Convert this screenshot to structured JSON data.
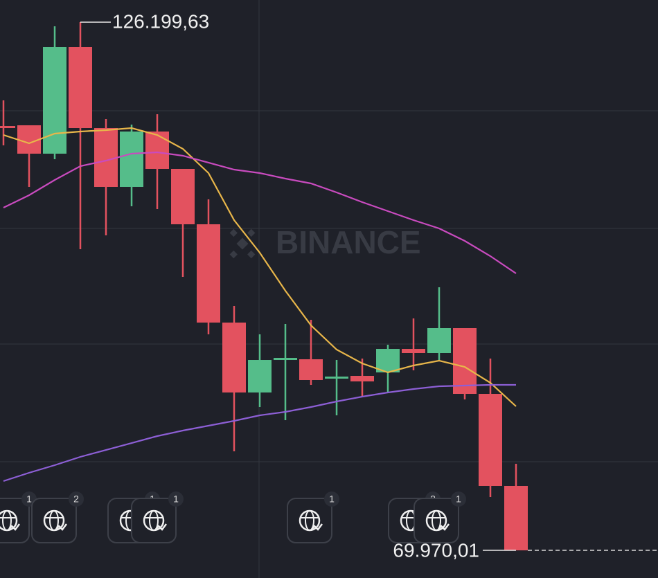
{
  "chart_data": {
    "type": "candlestick",
    "watermark": "BINANCE",
    "categories": [
      null,
      null,
      null,
      null,
      null,
      null,
      null,
      null,
      null,
      null,
      null,
      null,
      null,
      null,
      null,
      null,
      null,
      null,
      null,
      null,
      null
    ],
    "open": [
      115146,
      115220,
      112199,
      123547,
      114925,
      108662,
      114557,
      110578,
      104683,
      94219,
      86776,
      90313,
      90313,
      88250,
      88544,
      88913,
      91418,
      90976,
      93629,
      86628,
      76828
    ],
    "high": [
      117873,
      115220,
      125758,
      126199.63,
      115883,
      115294,
      116399,
      110578,
      107335,
      95987,
      92966,
      94071,
      94513,
      90239,
      90387,
      91860,
      94661,
      97977,
      93629,
      90387,
      79186
    ],
    "low": [
      113083,
      108662,
      111609,
      102030,
      103503,
      106598,
      106304,
      99082,
      92966,
      80512,
      85228,
      83828,
      87586,
      84344,
      86334,
      86850,
      89134,
      90239,
      86039,
      75649,
      69970.01
    ],
    "close": [
      114925,
      112199,
      123547,
      114925,
      108662,
      114557,
      110578,
      104683,
      94219,
      86776,
      90239,
      90460,
      88102,
      88471,
      87955,
      91418,
      90976,
      93629,
      86628,
      76828,
      69970.01
    ],
    "up_color": "#55bd8a",
    "down_color": "#e3525f",
    "ma": [
      {
        "color": "#e8b64a",
        "values": [
          114188,
          113304,
          114336,
          114557,
          114704,
          114925,
          114188,
          112715,
          110135,
          105125,
          101661,
          97608,
          93924,
          91345,
          89871,
          88913,
          89650,
          90166,
          89502,
          87807,
          85302
        ]
      },
      {
        "color": "#c94bbf",
        "values": [
          106451,
          107777,
          109399,
          110872,
          111462,
          112199,
          112346,
          111978,
          111241,
          110504,
          110135,
          109546,
          109030,
          108072,
          107041,
          106083,
          105125,
          104240,
          102914,
          101293,
          99450
        ]
      },
      {
        "color": "#8d5fd6",
        "values": [
          77343,
          78228,
          79038,
          79923,
          80659,
          81396,
          82133,
          82723,
          83239,
          83754,
          84344,
          84712,
          85228,
          85818,
          86334,
          86776,
          87144,
          87439,
          87513,
          87586,
          87586
        ]
      }
    ],
    "high_label": {
      "value": 126199.63,
      "label": "126.199,63"
    },
    "low_label": {
      "value": 69970.01,
      "label": "69.970,01"
    },
    "ylim": [
      67027,
      128558
    ],
    "events": [
      1,
      2,
      1,
      1,
      1,
      2,
      1
    ]
  }
}
